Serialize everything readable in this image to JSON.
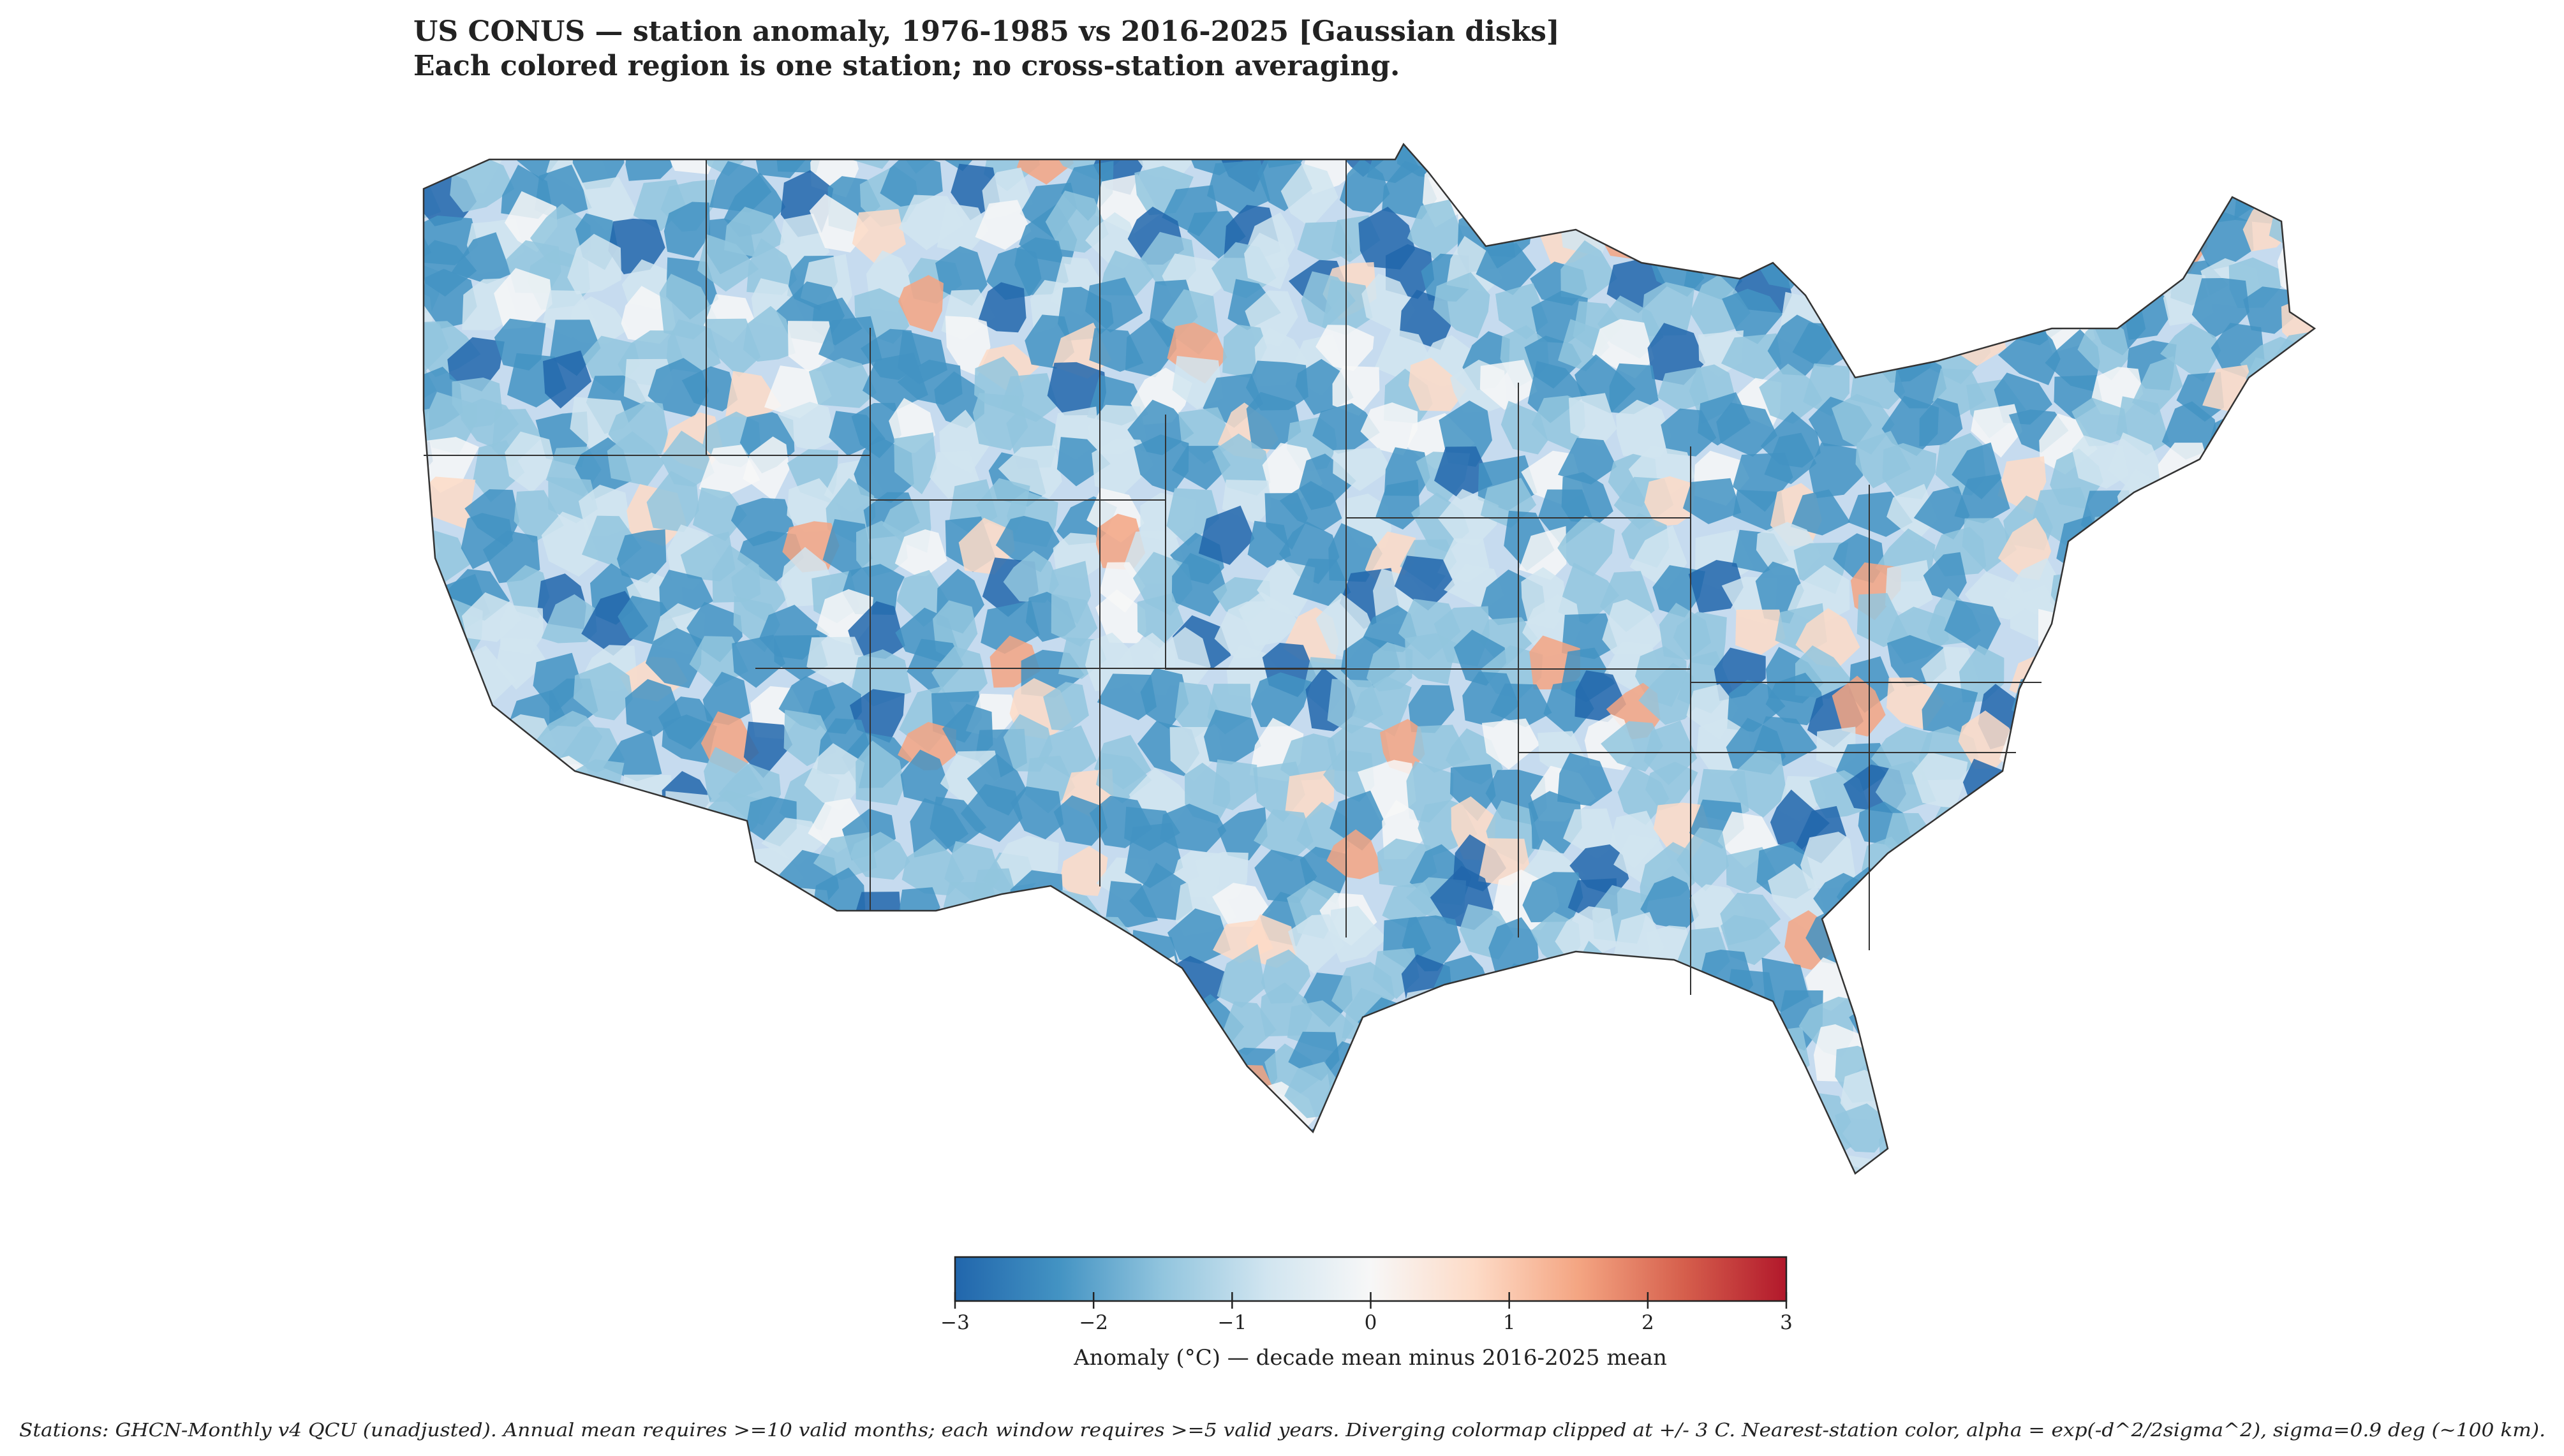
{
  "title": "US CONUS — station anomaly, 1976-1985 vs 2016-2025  [Gaussian disks]",
  "subtitle": "Each colored region is one station; no cross-station averaging.",
  "colorbar": {
    "label": "Anomaly (°C) — decade mean minus 2016-2025 mean",
    "lim": [
      -3,
      3
    ],
    "ticks": [
      {
        "value": -3,
        "label": "−3"
      },
      {
        "value": -2,
        "label": "−2"
      },
      {
        "value": -1,
        "label": "−1"
      },
      0,
      1,
      2,
      3
    ],
    "colors": [
      "#2166ac",
      "#4393c3",
      "#92c5de",
      "#d1e5f0",
      "#f7f7f7",
      "#fddbc7",
      "#f4a582",
      "#d6604d",
      "#b2182b"
    ]
  },
  "footnote": "Stations: GHCN-Monthly v4 QCU (unadjusted). Annual mean requires >=10 valid months; each window requires >=5 valid years. Diverging colormap clipped at +/- 3 C. Nearest-station color, alpha = exp(-d^2/2sigma^2), sigma=0.9 deg (~100 km)."
}
